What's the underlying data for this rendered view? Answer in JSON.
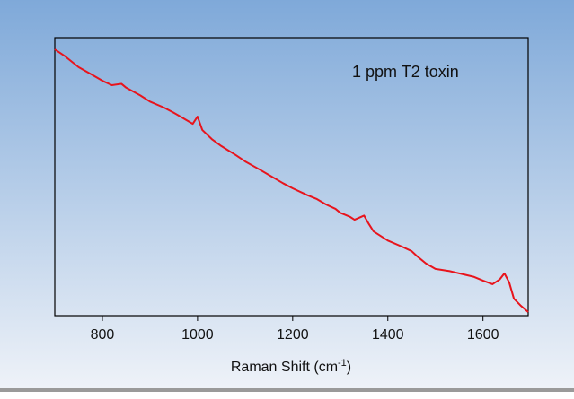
{
  "chart_data": {
    "type": "line",
    "annotation": "1 ppm T2 toxin",
    "xlabel_parts": [
      "Raman Shift (cm",
      "-1",
      ")"
    ],
    "x": [
      700,
      720,
      750,
      780,
      800,
      820,
      840,
      850,
      880,
      900,
      930,
      950,
      970,
      990,
      1000,
      1010,
      1030,
      1050,
      1080,
      1100,
      1130,
      1150,
      1180,
      1200,
      1230,
      1250,
      1270,
      1290,
      1300,
      1320,
      1330,
      1350,
      1360,
      1370,
      1400,
      1430,
      1450,
      1460,
      1480,
      1500,
      1530,
      1550,
      1580,
      1600,
      1620,
      1635,
      1645,
      1655,
      1665,
      1680,
      1695
    ],
    "series": [
      {
        "color": "#e8141c",
        "values": [
          95.8,
          93.5,
          89.4,
          86.5,
          84.5,
          82.9,
          83.4,
          82.0,
          79.2,
          77.0,
          74.8,
          73.0,
          71.0,
          69.0,
          71.6,
          66.8,
          63.5,
          61.0,
          57.8,
          55.5,
          52.6,
          50.6,
          47.6,
          45.8,
          43.4,
          42.0,
          40.0,
          38.4,
          37.0,
          35.6,
          34.5,
          36.0,
          33.0,
          30.3,
          27.0,
          24.8,
          23.2,
          21.6,
          18.8,
          16.8,
          16.0,
          15.2,
          14.0,
          12.6,
          11.3,
          13.0,
          15.2,
          12.0,
          6.1,
          3.5,
          1.3
        ]
      }
    ],
    "xlim": [
      700,
      1695
    ],
    "ylim": [
      0,
      100
    ],
    "xticks": [
      800,
      1000,
      1200,
      1400,
      1600
    ]
  }
}
